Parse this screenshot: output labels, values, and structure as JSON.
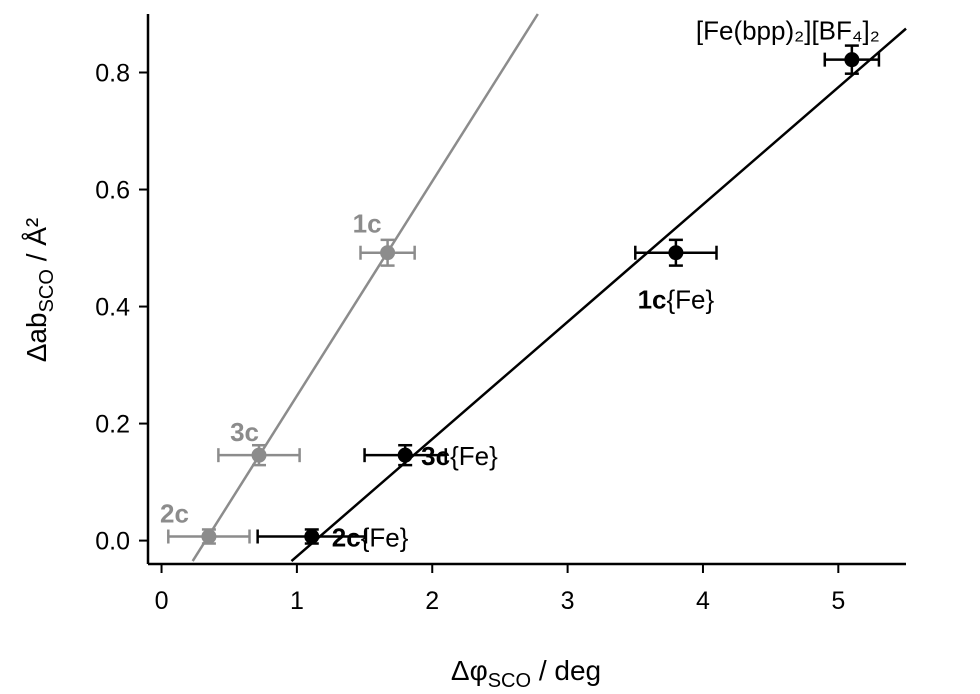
{
  "chart_data": {
    "type": "scatter",
    "xlabel": {
      "main": "Δφ",
      "sub": "SCO",
      "rest": " / deg"
    },
    "ylabel": {
      "main": "Δab",
      "sub": "SCO",
      "rest": " / Å²"
    },
    "xlim": [
      -0.1,
      5.5
    ],
    "ylim": [
      -0.04,
      0.9
    ],
    "xticks": [
      "0",
      "1",
      "2",
      "3",
      "4",
      "5"
    ],
    "yticks": [
      "0.0",
      "0.2",
      "0.4",
      "0.6",
      "0.8"
    ],
    "grid": false,
    "series": [
      {
        "color": "#8c8c8c",
        "points": [
          {
            "x": 0.35,
            "y": 0.007,
            "xerr": 0.3,
            "yerr": 0.012,
            "bold": "2c",
            "rest": ""
          },
          {
            "x": 0.72,
            "y": 0.146,
            "xerr": 0.3,
            "yerr": 0.017,
            "bold": "3c",
            "rest": ""
          },
          {
            "x": 1.67,
            "y": 0.492,
            "xerr": 0.2,
            "yerr": 0.022,
            "bold": "1c",
            "rest": ""
          }
        ],
        "fit": {
          "x0": 0.23,
          "y0": -0.035,
          "x1": 2.78,
          "y1": 0.9
        }
      },
      {
        "color": "#000000",
        "points": [
          {
            "x": 1.11,
            "y": 0.007,
            "xerr": 0.4,
            "yerr": 0.012,
            "bold": "2c",
            "rest": "{Fe}"
          },
          {
            "x": 1.8,
            "y": 0.146,
            "xerr": 0.3,
            "yerr": 0.017,
            "bold": "3c",
            "rest": "{Fe}"
          },
          {
            "x": 3.8,
            "y": 0.492,
            "xerr": 0.3,
            "yerr": 0.022,
            "bold": "1c",
            "rest": "{Fe}"
          },
          {
            "x": 5.1,
            "y": 0.822,
            "xerr": 0.2,
            "yerr": 0.024,
            "bold": "",
            "rest": "[Fe(bpp)₂][BF₄]₂"
          }
        ],
        "fit": {
          "x0": 0.96,
          "y0": -0.035,
          "x1": 5.5,
          "y1": 0.875
        }
      }
    ]
  }
}
